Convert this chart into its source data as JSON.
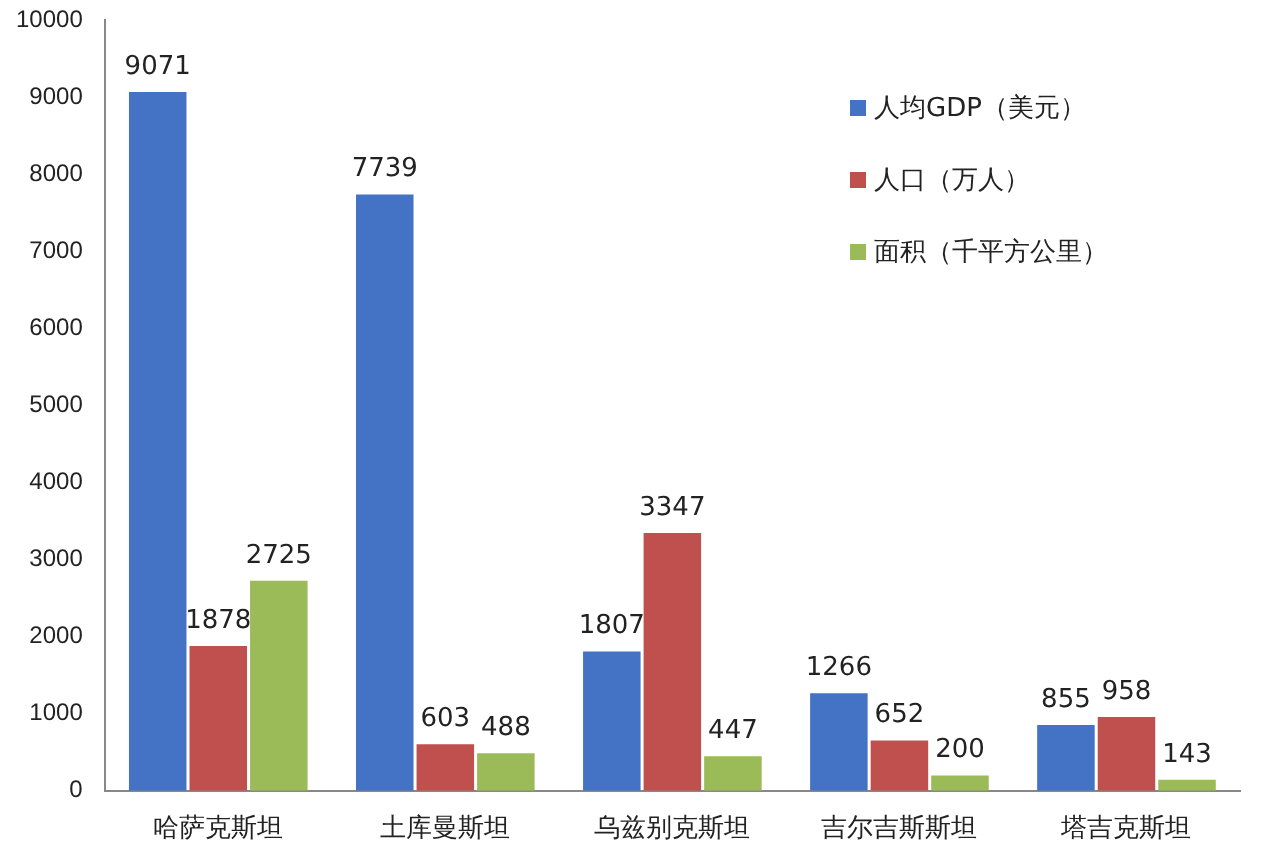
{
  "chart_data": {
    "type": "bar",
    "categories": [
      "哈萨克斯坦",
      "土库曼斯坦",
      "乌兹别克斯坦",
      "吉尔吉斯斯坦",
      "塔吉克斯坦"
    ],
    "series": [
      {
        "name": "人均GDP（美元）",
        "color": "#4472c4",
        "values": [
          9071,
          7739,
          1807,
          1266,
          855
        ]
      },
      {
        "name": "人口（万人）",
        "color": "#c0504d",
        "values": [
          1878,
          603,
          3347,
          652,
          958
        ]
      },
      {
        "name": "面积（千平方公里）",
        "color": "#9bbb59",
        "values": [
          2725,
          488,
          447,
          200,
          143
        ]
      }
    ],
    "ylim": [
      0,
      10000
    ],
    "yticks": [
      0,
      1000,
      2000,
      3000,
      4000,
      5000,
      6000,
      7000,
      8000,
      9000,
      10000
    ],
    "grid": false,
    "legend": "top right",
    "data_labels": true
  }
}
